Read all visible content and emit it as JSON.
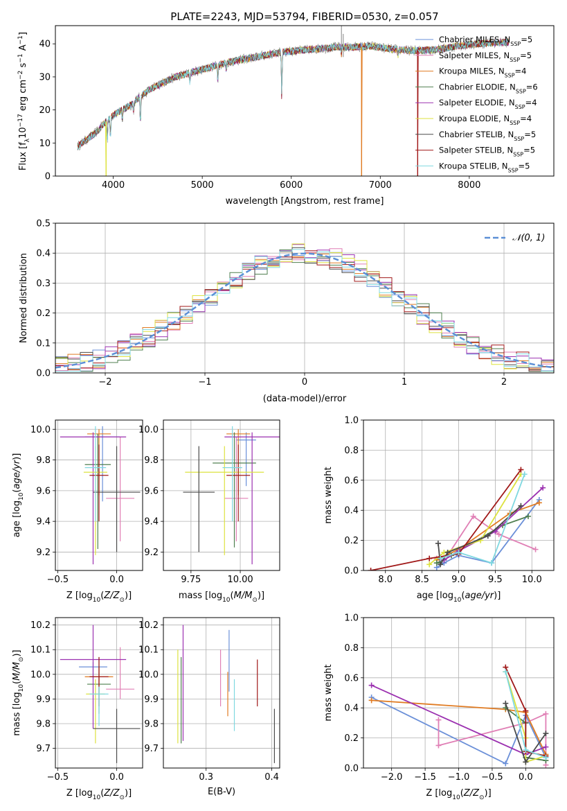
{
  "figure": {
    "title": "PLATE=2243, MJD=53794, FIBERID=0530, z=0.057"
  },
  "models": [
    {
      "label": "Chabrier MILES, N",
      "sub": "SSP",
      "suffix": "=5",
      "color": "#6a8fd8"
    },
    {
      "label": "Salpeter MILES, N",
      "sub": "SSP",
      "suffix": "=5",
      "color": "#e07fb5"
    },
    {
      "label": "Kroupa MILES, N",
      "sub": "SSP",
      "suffix": "=4",
      "color": "#e07b22"
    },
    {
      "label": "Chabrier ELODIE, N",
      "sub": "SSP",
      "suffix": "=6",
      "color": "#4f7f4f"
    },
    {
      "label": "Salpeter ELODIE, N",
      "sub": "SSP",
      "suffix": "=4",
      "color": "#9b30b0"
    },
    {
      "label": "Kroupa ELODIE, N",
      "sub": "SSP",
      "suffix": "=4",
      "color": "#dde23f"
    },
    {
      "label": "Chabrier STELIB, N",
      "sub": "SSP",
      "suffix": "=5",
      "color": "#4a4a4a"
    },
    {
      "label": "Salpeter STELIB, N",
      "sub": "SSP",
      "suffix": "=5",
      "color": "#a01818"
    },
    {
      "label": "Kroupa STELIB, N",
      "sub": "SSP",
      "suffix": "=5",
      "color": "#7fd8e0"
    }
  ],
  "chart_data": [
    {
      "id": "spectrum",
      "type": "line",
      "title": "PLATE=2243, MJD=53794, FIBERID=0530, z=0.057",
      "xlabel": "wavelength [Angstrom, rest frame]",
      "ylabel_parts": [
        "Flux [f",
        "λ",
        "10",
        "−17",
        " erg cm",
        "−2",
        " s",
        "−1",
        " A",
        "−1",
        "]"
      ],
      "xlim": [
        3350,
        8950
      ],
      "ylim": [
        0,
        45.5
      ],
      "xticks": [
        4000,
        5000,
        6000,
        7000,
        8000
      ],
      "yticks": [
        0,
        10,
        20,
        30,
        40
      ],
      "continuum_x": [
        3600,
        3700,
        3800,
        3900,
        4000,
        4100,
        4200,
        4300,
        4400,
        4500,
        4700,
        4900,
        5100,
        5300,
        5500,
        5700,
        5900,
        6100,
        6300,
        6500,
        6700,
        6900,
        7100,
        7300,
        7500,
        7700,
        7900,
        8100,
        8300,
        8450
      ],
      "continuum_y": [
        9,
        11,
        13,
        16,
        18.5,
        20,
        21.5,
        24,
        26,
        27.5,
        30,
        31.5,
        33,
        34.5,
        35.5,
        36.5,
        37.5,
        38,
        38.5,
        39,
        39,
        39.3,
        38.5,
        38,
        38,
        38.5,
        39.5,
        40,
        40.3,
        40.5
      ],
      "absorption_lines": [
        [
          3934,
          6
        ],
        [
          3969,
          6
        ],
        [
          4102,
          3
        ],
        [
          4227,
          3
        ],
        [
          4305,
          8
        ],
        [
          4861,
          3
        ],
        [
          5175,
          5
        ],
        [
          5270,
          2
        ],
        [
          5893,
          14
        ],
        [
          6563,
          2
        ],
        [
          7200,
          2
        ]
      ],
      "emission_spikes": [
        [
          6564,
          45.5
        ],
        [
          6584,
          43
        ]
      ],
      "dropouts": [
        [
          3920,
          "#dde23f"
        ],
        [
          6790,
          "#e07b22"
        ],
        [
          7420,
          "#a01818"
        ]
      ]
    },
    {
      "id": "residuals",
      "type": "bar",
      "xlabel": "(data-model)/error",
      "ylabel": "Normed distribution",
      "xlim": [
        -2.5,
        2.5
      ],
      "ylim": [
        0,
        0.5
      ],
      "xticks": [
        -2,
        -1,
        0,
        1,
        2
      ],
      "yticks": [
        0.0,
        0.1,
        0.2,
        0.3,
        0.4,
        0.5
      ],
      "bins": 40,
      "gaussian_label": "𝒩(0, 1)",
      "gaussian_color": "#5b8fd6"
    },
    {
      "id": "z-age",
      "type": "scatter",
      "xlabel": "Z [log10(Z/Z☉)]",
      "ylabel": "age [log10(age/yr)]",
      "xlim": [
        -0.52,
        0.22
      ],
      "ylim": [
        9.08,
        10.06
      ],
      "xticks": [
        -0.5,
        0.0
      ],
      "yticks": [
        9.2,
        9.4,
        9.6,
        9.8,
        10.0
      ],
      "points": [
        {
          "x": -0.12,
          "y": 9.95,
          "xerr": 0.15,
          "yerr": [
            0.42,
            0.07
          ]
        },
        {
          "x": 0.03,
          "y": 9.55,
          "xerr": 0.12,
          "yerr": [
            0.28,
            0.4
          ]
        },
        {
          "x": -0.15,
          "y": 9.97,
          "xerr": 0.1,
          "yerr": [
            0.4,
            0.03
          ]
        },
        {
          "x": -0.16,
          "y": 9.77,
          "xerr": 0.11,
          "yerr": [
            0.55,
            0.2
          ]
        },
        {
          "x": -0.2,
          "y": 9.95,
          "xerr": 0.28,
          "yerr": [
            0.83,
            0.03
          ]
        },
        {
          "x": -0.18,
          "y": 9.72,
          "xerr": 0.1,
          "yerr": [
            0.54,
            0.17
          ]
        },
        {
          "x": 0.0,
          "y": 9.59,
          "xerr": 0.2,
          "yerr": [
            0.39,
            0.3
          ]
        },
        {
          "x": -0.15,
          "y": 9.7,
          "xerr": 0.08,
          "yerr": [
            0.3,
            0.2
          ]
        },
        {
          "x": -0.18,
          "y": 9.75,
          "xerr": 0.09,
          "yerr": [
            0.35,
            0.27
          ]
        }
      ]
    },
    {
      "id": "mass-age",
      "type": "scatter",
      "xlabel": "mass [log10(M/M☉)]",
      "ylabel": "",
      "xlim": [
        9.61,
        10.2
      ],
      "ylim": [
        9.08,
        10.06
      ],
      "xticks": [
        9.75,
        10.0
      ],
      "yticks": [
        9.2,
        9.4,
        9.6,
        9.8,
        10.0
      ],
      "points": [
        {
          "x": 10.03,
          "y": 9.93,
          "xerr": 0.05,
          "yerr": [
            0.3,
            0.05
          ]
        },
        {
          "x": 9.98,
          "y": 9.55,
          "xerr": 0.06,
          "yerr": [
            0.28,
            0.4
          ]
        },
        {
          "x": 9.99,
          "y": 9.97,
          "xerr": 0.06,
          "yerr": [
            0.4,
            0.03
          ]
        },
        {
          "x": 9.97,
          "y": 9.78,
          "xerr": 0.11,
          "yerr": [
            0.55,
            0.2
          ]
        },
        {
          "x": 10.06,
          "y": 9.95,
          "xerr": 0.14,
          "yerr": [
            0.83,
            0.03
          ]
        },
        {
          "x": 9.92,
          "y": 9.72,
          "xerr": 0.2,
          "yerr": [
            0.54,
            0.17
          ]
        },
        {
          "x": 9.79,
          "y": 9.59,
          "xerr": 0.08,
          "yerr": [
            0.39,
            0.3
          ]
        },
        {
          "x": 9.99,
          "y": 9.7,
          "xerr": 0.06,
          "yerr": [
            0.3,
            0.2
          ]
        },
        {
          "x": 9.96,
          "y": 9.75,
          "xerr": 0.05,
          "yerr": [
            0.35,
            0.27
          ]
        }
      ]
    },
    {
      "id": "age-weight",
      "type": "line",
      "xlabel": "age [log10(age/yr)]",
      "ylabel": "mass weight",
      "xlim": [
        7.7,
        10.3
      ],
      "ylim": [
        0,
        1
      ],
      "xticks": [
        8.0,
        8.5,
        9.0,
        9.5,
        10.0
      ],
      "yticks": [
        0.0,
        0.2,
        0.4,
        0.6,
        0.8,
        1.0
      ],
      "series": [
        {
          "x": [
            8.7,
            8.8,
            9.0,
            9.45,
            10.1
          ],
          "y": [
            0.02,
            0.05,
            0.1,
            0.05,
            0.47
          ]
        },
        {
          "x": [
            8.7,
            8.85,
            9.2,
            9.55,
            10.05
          ],
          "y": [
            0.08,
            0.1,
            0.36,
            0.24,
            0.14
          ]
        },
        {
          "x": [
            8.7,
            9.0,
            9.7,
            10.1
          ],
          "y": [
            0.07,
            0.14,
            0.38,
            0.45
          ]
        },
        {
          "x": [
            8.7,
            8.8,
            8.9,
            9.0,
            9.6,
            9.95
          ],
          "y": [
            0.05,
            0.07,
            0.1,
            0.13,
            0.3,
            0.36
          ]
        },
        {
          "x": [
            8.8,
            9.0,
            9.5,
            10.15
          ],
          "y": [
            0.07,
            0.13,
            0.26,
            0.55
          ]
        },
        {
          "x": [
            8.6,
            8.8,
            9.3,
            9.85
          ],
          "y": [
            0.04,
            0.12,
            0.2,
            0.64
          ]
        },
        {
          "x": [
            8.72,
            8.75,
            8.85,
            9.4,
            9.85
          ],
          "y": [
            0.18,
            0.04,
            0.12,
            0.23,
            0.43
          ]
        },
        {
          "x": [
            7.8,
            8.6,
            9.0,
            9.85
          ],
          "y": [
            0.0,
            0.08,
            0.11,
            0.67
          ]
        },
        {
          "x": [
            8.75,
            9.0,
            9.45,
            9.9
          ],
          "y": [
            0.08,
            0.12,
            0.05,
            0.64
          ]
        }
      ]
    },
    {
      "id": "z-mass",
      "type": "scatter",
      "xlabel": "Z [log10(Z/Z☉)]",
      "ylabel": "mass [log10(M/M☉)]",
      "xlim": [
        -0.52,
        0.22
      ],
      "ylim": [
        9.62,
        10.23
      ],
      "xticks": [
        -0.5,
        0.0
      ],
      "yticks": [
        9.7,
        9.8,
        9.9,
        10.0,
        10.1,
        10.2
      ],
      "points": [
        {
          "x": -0.2,
          "y": 10.03,
          "xerr": 0.12,
          "yerr": [
            0.05,
            0.02
          ]
        },
        {
          "x": 0.03,
          "y": 9.94,
          "xerr": 0.12,
          "yerr": [
            0.04,
            0.17
          ]
        },
        {
          "x": -0.15,
          "y": 9.99,
          "xerr": 0.12,
          "yerr": [
            0.04,
            0.04
          ]
        },
        {
          "x": -0.15,
          "y": 9.96,
          "xerr": 0.1,
          "yerr": [
            0.12,
            0.11
          ]
        },
        {
          "x": -0.2,
          "y": 10.06,
          "xerr": 0.28,
          "yerr": [
            0.28,
            0.14
          ]
        },
        {
          "x": -0.18,
          "y": 9.92,
          "xerr": 0.08,
          "yerr": [
            0.2,
            0.06
          ]
        },
        {
          "x": 0.0,
          "y": 9.78,
          "xerr": 0.2,
          "yerr": [
            0.14,
            0.08
          ]
        },
        {
          "x": -0.15,
          "y": 9.99,
          "xerr": 0.08,
          "yerr": [
            0.12,
            0.08
          ]
        },
        {
          "x": -0.15,
          "y": 9.92,
          "xerr": 0.08,
          "yerr": [
            0.13,
            0.03
          ]
        }
      ]
    },
    {
      "id": "ebv-mass",
      "type": "scatter",
      "xlabel": "E(B-V)",
      "ylabel": "",
      "xlim": [
        0.235,
        0.412
      ],
      "ylim": [
        9.62,
        10.23
      ],
      "xticks": [
        0.3,
        0.4
      ],
      "yticks": [
        9.7,
        9.8,
        9.9,
        10.0,
        10.1,
        10.2
      ],
      "points": [
        {
          "x": 0.335,
          "y": 10.05,
          "xerr": 0,
          "yerr": [
            0.12,
            0.13
          ]
        },
        {
          "x": 0.322,
          "y": 9.98,
          "xerr": 0,
          "yerr": [
            0.11,
            0.12
          ]
        },
        {
          "x": 0.333,
          "y": 9.93,
          "xerr": 0,
          "yerr": [
            0.1,
            0.08
          ]
        },
        {
          "x": 0.262,
          "y": 9.96,
          "xerr": 0,
          "yerr": [
            0.24,
            0.11
          ]
        },
        {
          "x": 0.265,
          "y": 10.06,
          "xerr": 0,
          "yerr": [
            0.33,
            0.14
          ]
        },
        {
          "x": 0.257,
          "y": 9.9,
          "xerr": 0,
          "yerr": [
            0.18,
            0.2
          ]
        },
        {
          "x": 0.404,
          "y": 9.78,
          "xerr": 0,
          "yerr": [
            0.14,
            0.08
          ]
        },
        {
          "x": 0.378,
          "y": 9.97,
          "xerr": 0,
          "yerr": [
            0.1,
            0.09
          ]
        },
        {
          "x": 0.343,
          "y": 9.87,
          "xerr": 0,
          "yerr": [
            0.1,
            0.11
          ]
        }
      ]
    },
    {
      "id": "z-weight",
      "type": "line",
      "xlabel": "Z [log10(Z/Z☉)]",
      "ylabel": "mass weight",
      "xlim": [
        -2.42,
        0.42
      ],
      "ylim": [
        0,
        1
      ],
      "xticks": [
        -2.0,
        -1.5,
        -1.0,
        -0.5,
        0.0
      ],
      "yticks": [
        0.0,
        0.2,
        0.4,
        0.6,
        0.8,
        1.0
      ],
      "series": [
        {
          "x": [
            -2.3,
            -0.3,
            0.0,
            0.3
          ],
          "y": [
            0.47,
            0.03,
            0.35,
            0.07
          ]
        },
        {
          "x": [
            -1.3,
            -1.3,
            0.0,
            0.3,
            0.3
          ],
          "y": [
            0.32,
            0.15,
            0.3,
            0.36,
            0.02
          ]
        },
        {
          "x": [
            -2.3,
            -0.3,
            0.0,
            0.3
          ],
          "y": [
            0.45,
            0.39,
            0.37,
            0.09
          ]
        },
        {
          "x": [
            -0.3,
            0.0,
            0.0,
            0.3
          ],
          "y": [
            0.4,
            0.3,
            0.07,
            0.05
          ]
        },
        {
          "x": [
            -2.3,
            0.0,
            0.3
          ],
          "y": [
            0.55,
            0.09,
            0.14
          ]
        },
        {
          "x": [
            -0.3,
            0.0,
            0.0,
            0.3
          ],
          "y": [
            0.64,
            0.2,
            0.04,
            0.08
          ]
        },
        {
          "x": [
            -0.3,
            0.0,
            0.3
          ],
          "y": [
            0.43,
            0.04,
            0.23
          ]
        },
        {
          "x": [
            -0.3,
            0.0,
            0.0,
            0.3
          ],
          "y": [
            0.67,
            0.38,
            0.11,
            0.08
          ]
        },
        {
          "x": [
            -0.3,
            0.0,
            0.3
          ],
          "y": [
            0.64,
            0.12,
            0.07
          ]
        }
      ]
    }
  ]
}
